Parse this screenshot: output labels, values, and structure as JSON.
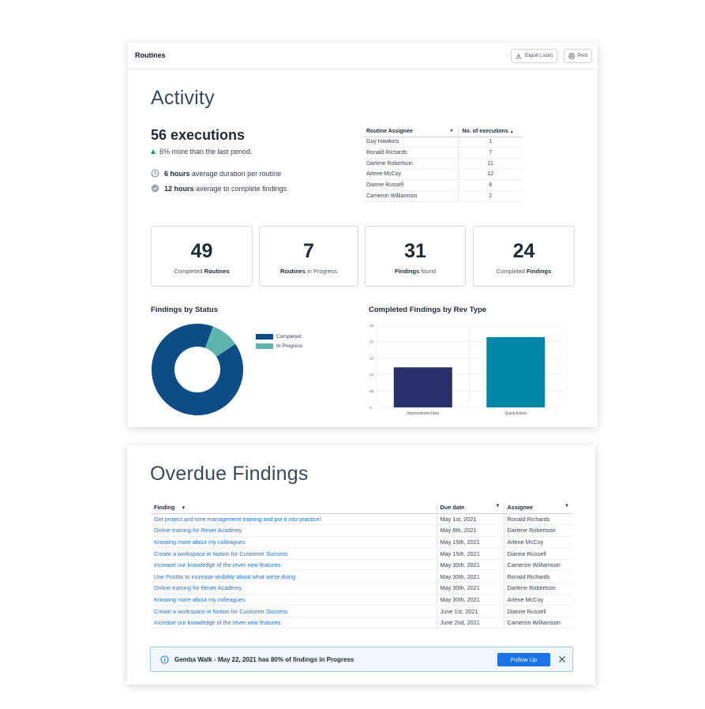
{
  "routines": {
    "title": "Routines",
    "export_label": "Export (.xslx)",
    "print_label": "Print",
    "activity_heading": "Activity",
    "executions": "56 executions",
    "executions_delta": "6% more than the last period.",
    "duration": {
      "value": "6 hours",
      "text": "average duration per routine"
    },
    "complete": {
      "value": "12 hours",
      "text": "average to complete findings"
    },
    "assignee_table": {
      "headers": [
        "Routine Assignee",
        "No. of executions"
      ],
      "rows": [
        {
          "name": "Guy Hawkins",
          "count": "1"
        },
        {
          "name": "Ronald Richards",
          "count": "7"
        },
        {
          "name": "Darlene Robertson",
          "count": "11"
        },
        {
          "name": "Arlene McCoy",
          "count": "12"
        },
        {
          "name": "Dianne Russell",
          "count": "8"
        },
        {
          "name": "Cameron Williamson",
          "count": "2"
        }
      ]
    },
    "kpis": [
      {
        "value": "49",
        "pre": "Completed ",
        "bold": "Routines",
        "post": ""
      },
      {
        "value": "7",
        "pre": "",
        "bold": "Routines",
        "post": " in Progress"
      },
      {
        "value": "31",
        "pre": "",
        "bold": "Findings",
        "post": " found"
      },
      {
        "value": "24",
        "pre": "Completed ",
        "bold": "Findings",
        "post": ""
      }
    ],
    "colors": {
      "completed": "#0d4d86",
      "in_progress": "#5db5ac",
      "bar1": "#29306b",
      "bar2": "#0088a8"
    }
  },
  "chart_data": [
    {
      "type": "pie",
      "title": "Findings by Status",
      "labels": [
        "Completed",
        "In Progress"
      ],
      "values": [
        90,
        10
      ],
      "donut": true,
      "legend": "right"
    },
    {
      "type": "bar",
      "title": "Completed Findings by Rev Type",
      "categories": [
        "Improvement Idea",
        "Quick Action"
      ],
      "values": [
        12.2,
        21.4
      ],
      "yticks": [
        "25",
        "20",
        "15",
        "10",
        "05",
        "0"
      ],
      "ylim": [
        0,
        25
      ],
      "grid": true
    }
  ],
  "overdue": {
    "heading": "Overdue Findings",
    "headers": [
      "Finding",
      "Due date",
      "Assignee"
    ],
    "rows": [
      {
        "finding": "Get project and time management training and put it into practice!",
        "due": "May 1st, 2021",
        "assignee": "Ronald Richards"
      },
      {
        "finding": "Online training for Rever Academy",
        "due": "May 8th, 2021",
        "assignee": "Darlene Robertson"
      },
      {
        "finding": "Knowing more about my colleagues",
        "due": "May 15th, 2021",
        "assignee": "Arlene McCoy"
      },
      {
        "finding": "Create a workspace in Notion for Customer Success",
        "due": "May 15th, 2021",
        "assignee": "Dianne Russell"
      },
      {
        "finding": "Increase our knowledge of the rever new features",
        "due": "May 30th, 2021",
        "assignee": "Cameron Williamson"
      },
      {
        "finding": "Use PostIts to increase visibility about what we're doing",
        "due": "May 30th, 2021",
        "assignee": "Ronald Richards"
      },
      {
        "finding": "Online training for Rever Academy",
        "due": "May 30th, 2021",
        "assignee": "Darlene Robertson"
      },
      {
        "finding": "Knowing more about my colleagues",
        "due": "May 30th, 2021",
        "assignee": "Arlene McCoy"
      },
      {
        "finding": "Create a workspace in Notion for Customer Success",
        "due": "June 1st, 2021",
        "assignee": "Dianne Russell"
      },
      {
        "finding": "Increase our knowledge of the rever new features",
        "due": "June 2nd, 2021",
        "assignee": "Cameron Williamson"
      }
    ],
    "alert_text": "Gemba Walk - May 22, 2021 has 80% of findings in Progress",
    "alert_button": "Follow Up",
    "link_color": "#1a73e8"
  }
}
